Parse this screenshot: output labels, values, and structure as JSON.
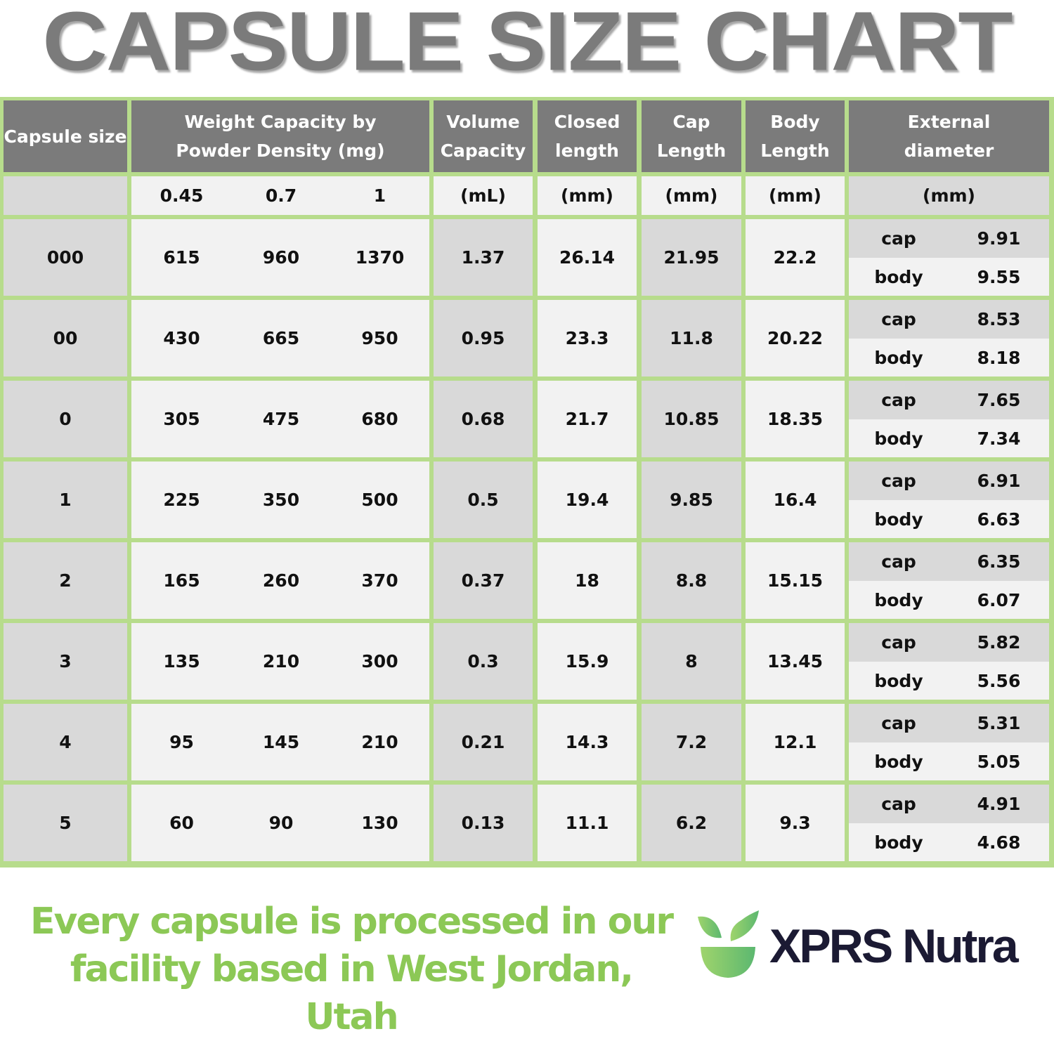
{
  "title": "CAPSULE SIZE CHART",
  "chart_data": {
    "type": "table",
    "title": "CAPSULE SIZE CHART",
    "headers": {
      "capsule_size": "Capsule size",
      "weight": "Weight Capacity by Powder Density (mg)",
      "weight_line1": "Weight Capacity by",
      "weight_line2": "Powder Density (mg)",
      "volume": [
        "Volume",
        "Capacity"
      ],
      "closed": [
        "Closed",
        "length"
      ],
      "cap": [
        "Cap",
        "Length"
      ],
      "body": [
        "Body",
        "Length"
      ],
      "external": [
        "External",
        "diameter"
      ]
    },
    "units": {
      "densities": [
        "0.45",
        "0.7",
        "1"
      ],
      "volume": "(mL)",
      "closed": "(mm)",
      "cap": "(mm)",
      "body": "(mm)",
      "external": "(mm)"
    },
    "diameter_labels": {
      "cap": "cap",
      "body": "body"
    },
    "rows": [
      {
        "size": "000",
        "w045": "615",
        "w07": "960",
        "w1": "1370",
        "volume": "1.37",
        "closed": "26.14",
        "cap_len": "21.95",
        "body_len": "22.2",
        "d_cap": "9.91",
        "d_body": "9.55"
      },
      {
        "size": "00",
        "w045": "430",
        "w07": "665",
        "w1": "950",
        "volume": "0.95",
        "closed": "23.3",
        "cap_len": "11.8",
        "body_len": "20.22",
        "d_cap": "8.53",
        "d_body": "8.18"
      },
      {
        "size": "0",
        "w045": "305",
        "w07": "475",
        "w1": "680",
        "volume": "0.68",
        "closed": "21.7",
        "cap_len": "10.85",
        "body_len": "18.35",
        "d_cap": "7.65",
        "d_body": "7.34"
      },
      {
        "size": "1",
        "w045": "225",
        "w07": "350",
        "w1": "500",
        "volume": "0.5",
        "closed": "19.4",
        "cap_len": "9.85",
        "body_len": "16.4",
        "d_cap": "6.91",
        "d_body": "6.63"
      },
      {
        "size": "2",
        "w045": "165",
        "w07": "260",
        "w1": "370",
        "volume": "0.37",
        "closed": "18",
        "cap_len": "8.8",
        "body_len": "15.15",
        "d_cap": "6.35",
        "d_body": "6.07"
      },
      {
        "size": "3",
        "w045": "135",
        "w07": "210",
        "w1": "300",
        "volume": "0.3",
        "closed": "15.9",
        "cap_len": "8",
        "body_len": "13.45",
        "d_cap": "5.82",
        "d_body": "5.56"
      },
      {
        "size": "4",
        "w045": "95",
        "w07": "145",
        "w1": "210",
        "volume": "0.21",
        "closed": "14.3",
        "cap_len": "7.2",
        "body_len": "12.1",
        "d_cap": "5.31",
        "d_body": "5.05"
      },
      {
        "size": "5",
        "w045": "60",
        "w07": "90",
        "w1": "130",
        "volume": "0.13",
        "closed": "11.1",
        "cap_len": "6.2",
        "body_len": "9.3",
        "d_cap": "4.91",
        "d_body": "4.68"
      }
    ]
  },
  "footer": {
    "line1": "Every capsule is processed in our",
    "line2": "facility based in West Jordan, Utah",
    "brand": "XPRS Nutra",
    "logo_icon": "leaf-bowl-icon"
  },
  "colors": {
    "grid_green": "#b7dc8c",
    "header_gray": "#7b7b7b",
    "cell_light": "#f2f2f2",
    "cell_dark": "#d9d9d9",
    "footer_green": "#8cc856",
    "brand_navy": "#1b1a33"
  }
}
